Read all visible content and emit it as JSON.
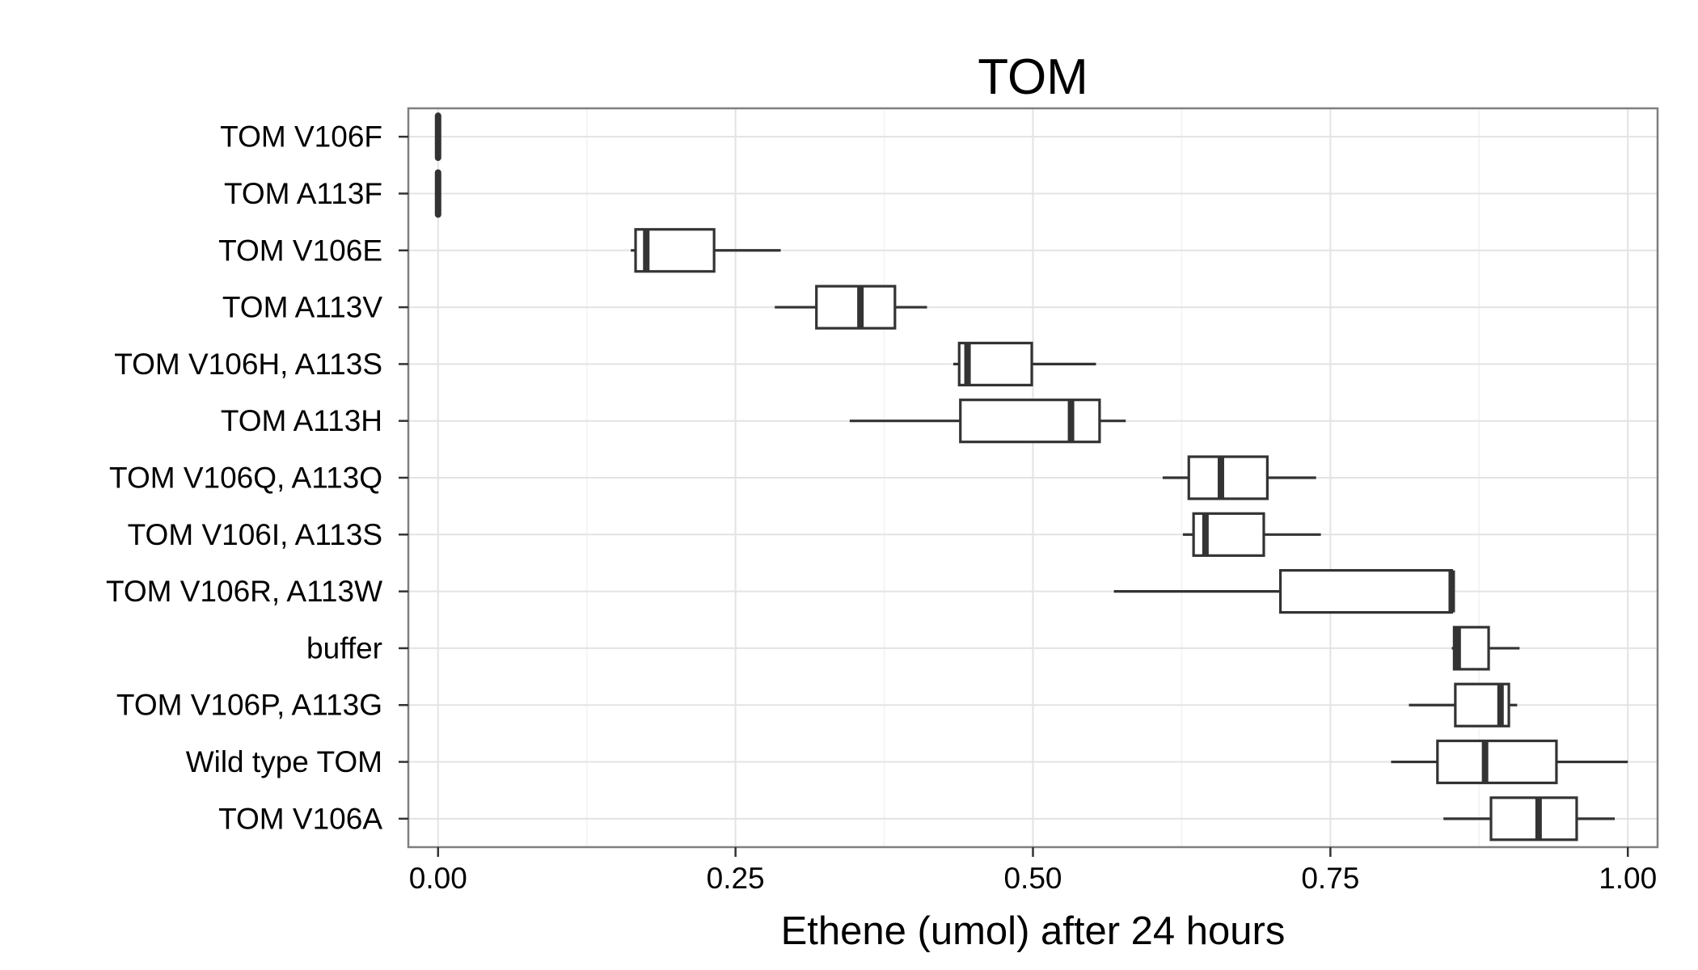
{
  "chart_data": {
    "type": "boxplot",
    "title": "TOM",
    "xlabel": "Ethene (umol) after 24 hours",
    "ylabel": "",
    "xlim": [
      -0.025,
      1.025
    ],
    "xticks": [
      0.0,
      0.25,
      0.5,
      0.75,
      1.0
    ],
    "xtick_labels": [
      "0.00",
      "0.25",
      "0.50",
      "0.75",
      "1.00"
    ],
    "grid": true,
    "legend": "none",
    "colors": {
      "panel_border": "#7f7f7f",
      "grid_major": "#e3e3e3",
      "grid_minor": "#f2f2f2",
      "box_stroke": "#333333",
      "box_fill": "#ffffff",
      "text": "#000000",
      "tick": "#333333"
    },
    "categories": [
      "TOM V106F",
      "TOM A113F",
      "TOM V106E",
      "TOM A113V",
      "TOM V106H, A113S",
      "TOM A113H",
      "TOM V106Q, A113Q",
      "TOM V106I, A113S",
      "TOM V106R, A113W",
      "buffer",
      "TOM V106P, A113G",
      "Wild type TOM",
      "TOM V106A"
    ],
    "boxes": [
      {
        "label": "TOM V106F",
        "min": 0.0,
        "q1": 0.0,
        "median": 0.0,
        "q3": 0.0,
        "max": 0.0
      },
      {
        "label": "TOM A113F",
        "min": 0.0,
        "q1": 0.0,
        "median": 0.0,
        "q3": 0.0,
        "max": 0.0
      },
      {
        "label": "TOM V106E",
        "min": 0.162,
        "q1": 0.166,
        "median": 0.175,
        "q3": 0.232,
        "max": 0.288
      },
      {
        "label": "TOM A113V",
        "min": 0.283,
        "q1": 0.318,
        "median": 0.355,
        "q3": 0.384,
        "max": 0.411
      },
      {
        "label": "TOM V106H, A113S",
        "min": 0.433,
        "q1": 0.438,
        "median": 0.445,
        "q3": 0.499,
        "max": 0.553
      },
      {
        "label": "TOM A113H",
        "min": 0.346,
        "q1": 0.439,
        "median": 0.532,
        "q3": 0.556,
        "max": 0.578
      },
      {
        "label": "TOM V106Q, A113Q",
        "min": 0.609,
        "q1": 0.631,
        "median": 0.658,
        "q3": 0.697,
        "max": 0.738
      },
      {
        "label": "TOM V106I, A113S",
        "min": 0.626,
        "q1": 0.635,
        "median": 0.645,
        "q3": 0.694,
        "max": 0.742
      },
      {
        "label": "TOM V106R, A113W",
        "min": 0.568,
        "q1": 0.708,
        "median": 0.852,
        "q3": 0.852,
        "max": 0.852
      },
      {
        "label": "buffer",
        "min": 0.852,
        "q1": 0.854,
        "median": 0.857,
        "q3": 0.883,
        "max": 0.909
      },
      {
        "label": "TOM V106P, A113G",
        "min": 0.816,
        "q1": 0.855,
        "median": 0.893,
        "q3": 0.9,
        "max": 0.907
      },
      {
        "label": "Wild type TOM",
        "min": 0.801,
        "q1": 0.84,
        "median": 0.88,
        "q3": 0.94,
        "max": 1.0
      },
      {
        "label": "TOM V106A",
        "min": 0.845,
        "q1": 0.885,
        "median": 0.925,
        "q3": 0.957,
        "max": 0.989
      }
    ]
  }
}
